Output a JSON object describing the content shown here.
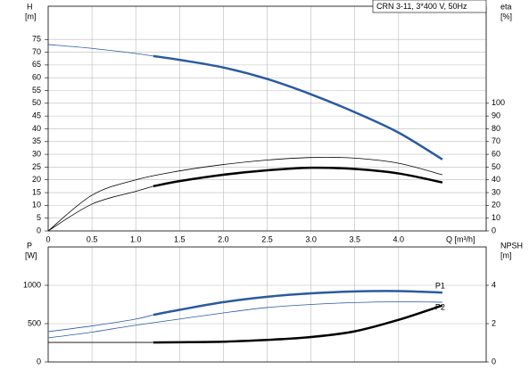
{
  "chart_data": [
    {
      "type": "line",
      "title": "CRN 3-11, 3*400 V, 50Hz",
      "ylabel": [
        "H",
        "[m]"
      ],
      "y2label": [
        "eta",
        "[%]"
      ],
      "xlabel": "Q [m³/h]",
      "xlim": [
        0,
        5
      ],
      "ylim": [
        0,
        88
      ],
      "y2lim": [
        0,
        176
      ],
      "xticks": [
        0,
        0.5,
        {
          "value": 1,
          "label": "1.0"
        },
        1.5,
        {
          "value": 2,
          "label": "2.0"
        },
        2.5,
        {
          "value": 3,
          "label": "3.0"
        },
        3.5,
        {
          "value": 4,
          "label": "4.0"
        }
      ],
      "yticks": [
        0,
        5,
        10,
        15,
        20,
        25,
        30,
        35,
        40,
        45,
        50,
        55,
        60,
        65,
        70,
        75
      ],
      "y2ticks": [
        0,
        10,
        20,
        30,
        40,
        50,
        60,
        70,
        80,
        90,
        100
      ],
      "grid": true,
      "series": [
        {
          "color": "#2a5aa0",
          "width": 0.8,
          "x": [
            0,
            0.5,
            1,
            1.2
          ],
          "values": [
            73,
            71.5,
            69.5,
            68.5
          ]
        },
        {
          "color": "#2a5aa0",
          "width": 2.5,
          "x": [
            1.2,
            1.5,
            2,
            2.5,
            3,
            3.5,
            4,
            4.5
          ],
          "values": [
            68.5,
            67,
            64,
            59.5,
            53.5,
            46.5,
            38.5,
            28
          ]
        },
        {
          "color": "#000000",
          "width": 0.8,
          "axis": "y2",
          "x": [
            0,
            0.5,
            1,
            1.5,
            2,
            2.5,
            3,
            3.5,
            4,
            4.5
          ],
          "values": [
            0,
            28,
            40,
            47,
            52,
            55.5,
            57.5,
            57,
            53,
            44
          ]
        },
        {
          "color": "#000000",
          "width": 0.8,
          "axis": "y2",
          "x": [
            0,
            0.5,
            1,
            1.2
          ],
          "values": [
            0,
            21,
            31,
            35
          ]
        },
        {
          "color": "#000000",
          "width": 2.5,
          "axis": "y2",
          "x": [
            1.2,
            1.5,
            2,
            2.5,
            3,
            3.5,
            4,
            4.5
          ],
          "values": [
            35,
            39,
            44,
            47.5,
            49.5,
            48.5,
            45,
            38
          ]
        }
      ]
    },
    {
      "type": "line",
      "ylabel": [
        "P",
        "[W]"
      ],
      "y2label": [
        "NPSH",
        "[m]"
      ],
      "xlim": [
        0,
        5
      ],
      "ylim": [
        0,
        1500
      ],
      "y2lim": [
        0,
        6
      ],
      "yticks": [
        0,
        500,
        1000
      ],
      "y2ticks": [
        0,
        2,
        4
      ],
      "grid": true,
      "series": [
        {
          "color": "#2a5aa0",
          "width": 0.8,
          "x": [
            0,
            0.5,
            1,
            1.2
          ],
          "values": [
            395,
            470,
            560,
            615
          ]
        },
        {
          "name": "P1",
          "color": "#2a5aa0",
          "width": 2.5,
          "x": [
            1.2,
            1.5,
            2,
            2.5,
            3,
            3.5,
            4,
            4.5
          ],
          "values": [
            615,
            680,
            780,
            850,
            895,
            920,
            925,
            905
          ]
        },
        {
          "name": "P2",
          "color": "#2a5aa0",
          "width": 0.8,
          "x": [
            0,
            0.5,
            1,
            1.5,
            2,
            2.5,
            3,
            3.5,
            4,
            4.5
          ],
          "values": [
            314,
            390,
            480,
            560,
            640,
            710,
            750,
            775,
            785,
            780
          ]
        },
        {
          "color": "#000000",
          "width": 0.8,
          "axis": "y2",
          "x": [
            0,
            0.5,
            1,
            1.2
          ],
          "values": [
            1.02,
            1.02,
            1.02,
            1.02
          ]
        },
        {
          "color": "#000000",
          "width": 2.5,
          "axis": "y2",
          "x": [
            1.2,
            1.5,
            2,
            2.5,
            3,
            3.5,
            4,
            4.5
          ],
          "values": [
            1.02,
            1.03,
            1.06,
            1.15,
            1.3,
            1.6,
            2.2,
            2.95
          ]
        }
      ]
    }
  ]
}
